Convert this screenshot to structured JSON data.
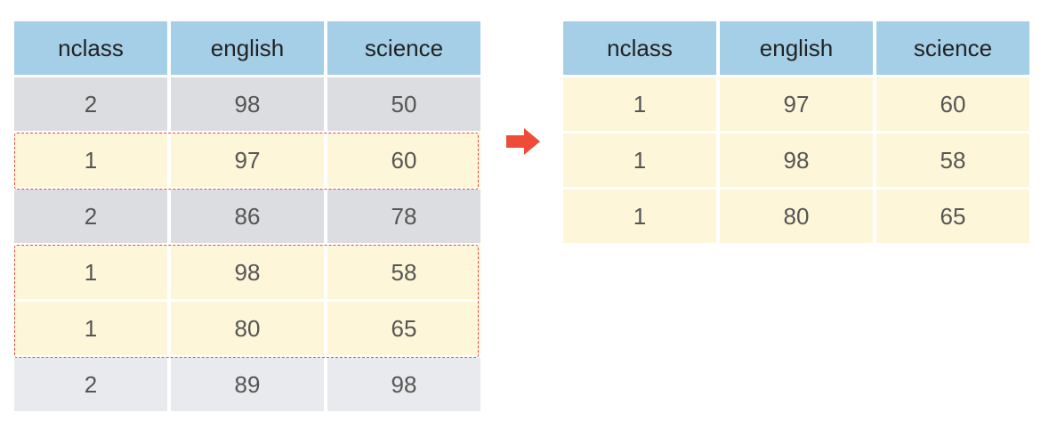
{
  "left_table": {
    "headers": [
      "nclass",
      "english",
      "science"
    ],
    "rows": [
      {
        "nclass": "2",
        "english": "98",
        "science": "50",
        "selected": false
      },
      {
        "nclass": "1",
        "english": "97",
        "science": "60",
        "selected": true
      },
      {
        "nclass": "2",
        "english": "86",
        "science": "78",
        "selected": false
      },
      {
        "nclass": "1",
        "english": "98",
        "science": "58",
        "selected": true
      },
      {
        "nclass": "1",
        "english": "80",
        "science": "65",
        "selected": true
      },
      {
        "nclass": "2",
        "english": "89",
        "science": "98",
        "selected": false
      }
    ]
  },
  "right_table": {
    "headers": [
      "nclass",
      "english",
      "science"
    ],
    "rows": [
      {
        "nclass": "1",
        "english": "97",
        "science": "60"
      },
      {
        "nclass": "1",
        "english": "98",
        "science": "58"
      },
      {
        "nclass": "1",
        "english": "80",
        "science": "65"
      }
    ]
  },
  "colors": {
    "header": "#a5cfe6",
    "unselected_row": "#dcdde0",
    "selected_row": "#fdf6d9",
    "highlight_border": "#e04a3f",
    "arrow": "#ee4c36"
  },
  "icons": {
    "arrow": "right-arrow-icon"
  }
}
